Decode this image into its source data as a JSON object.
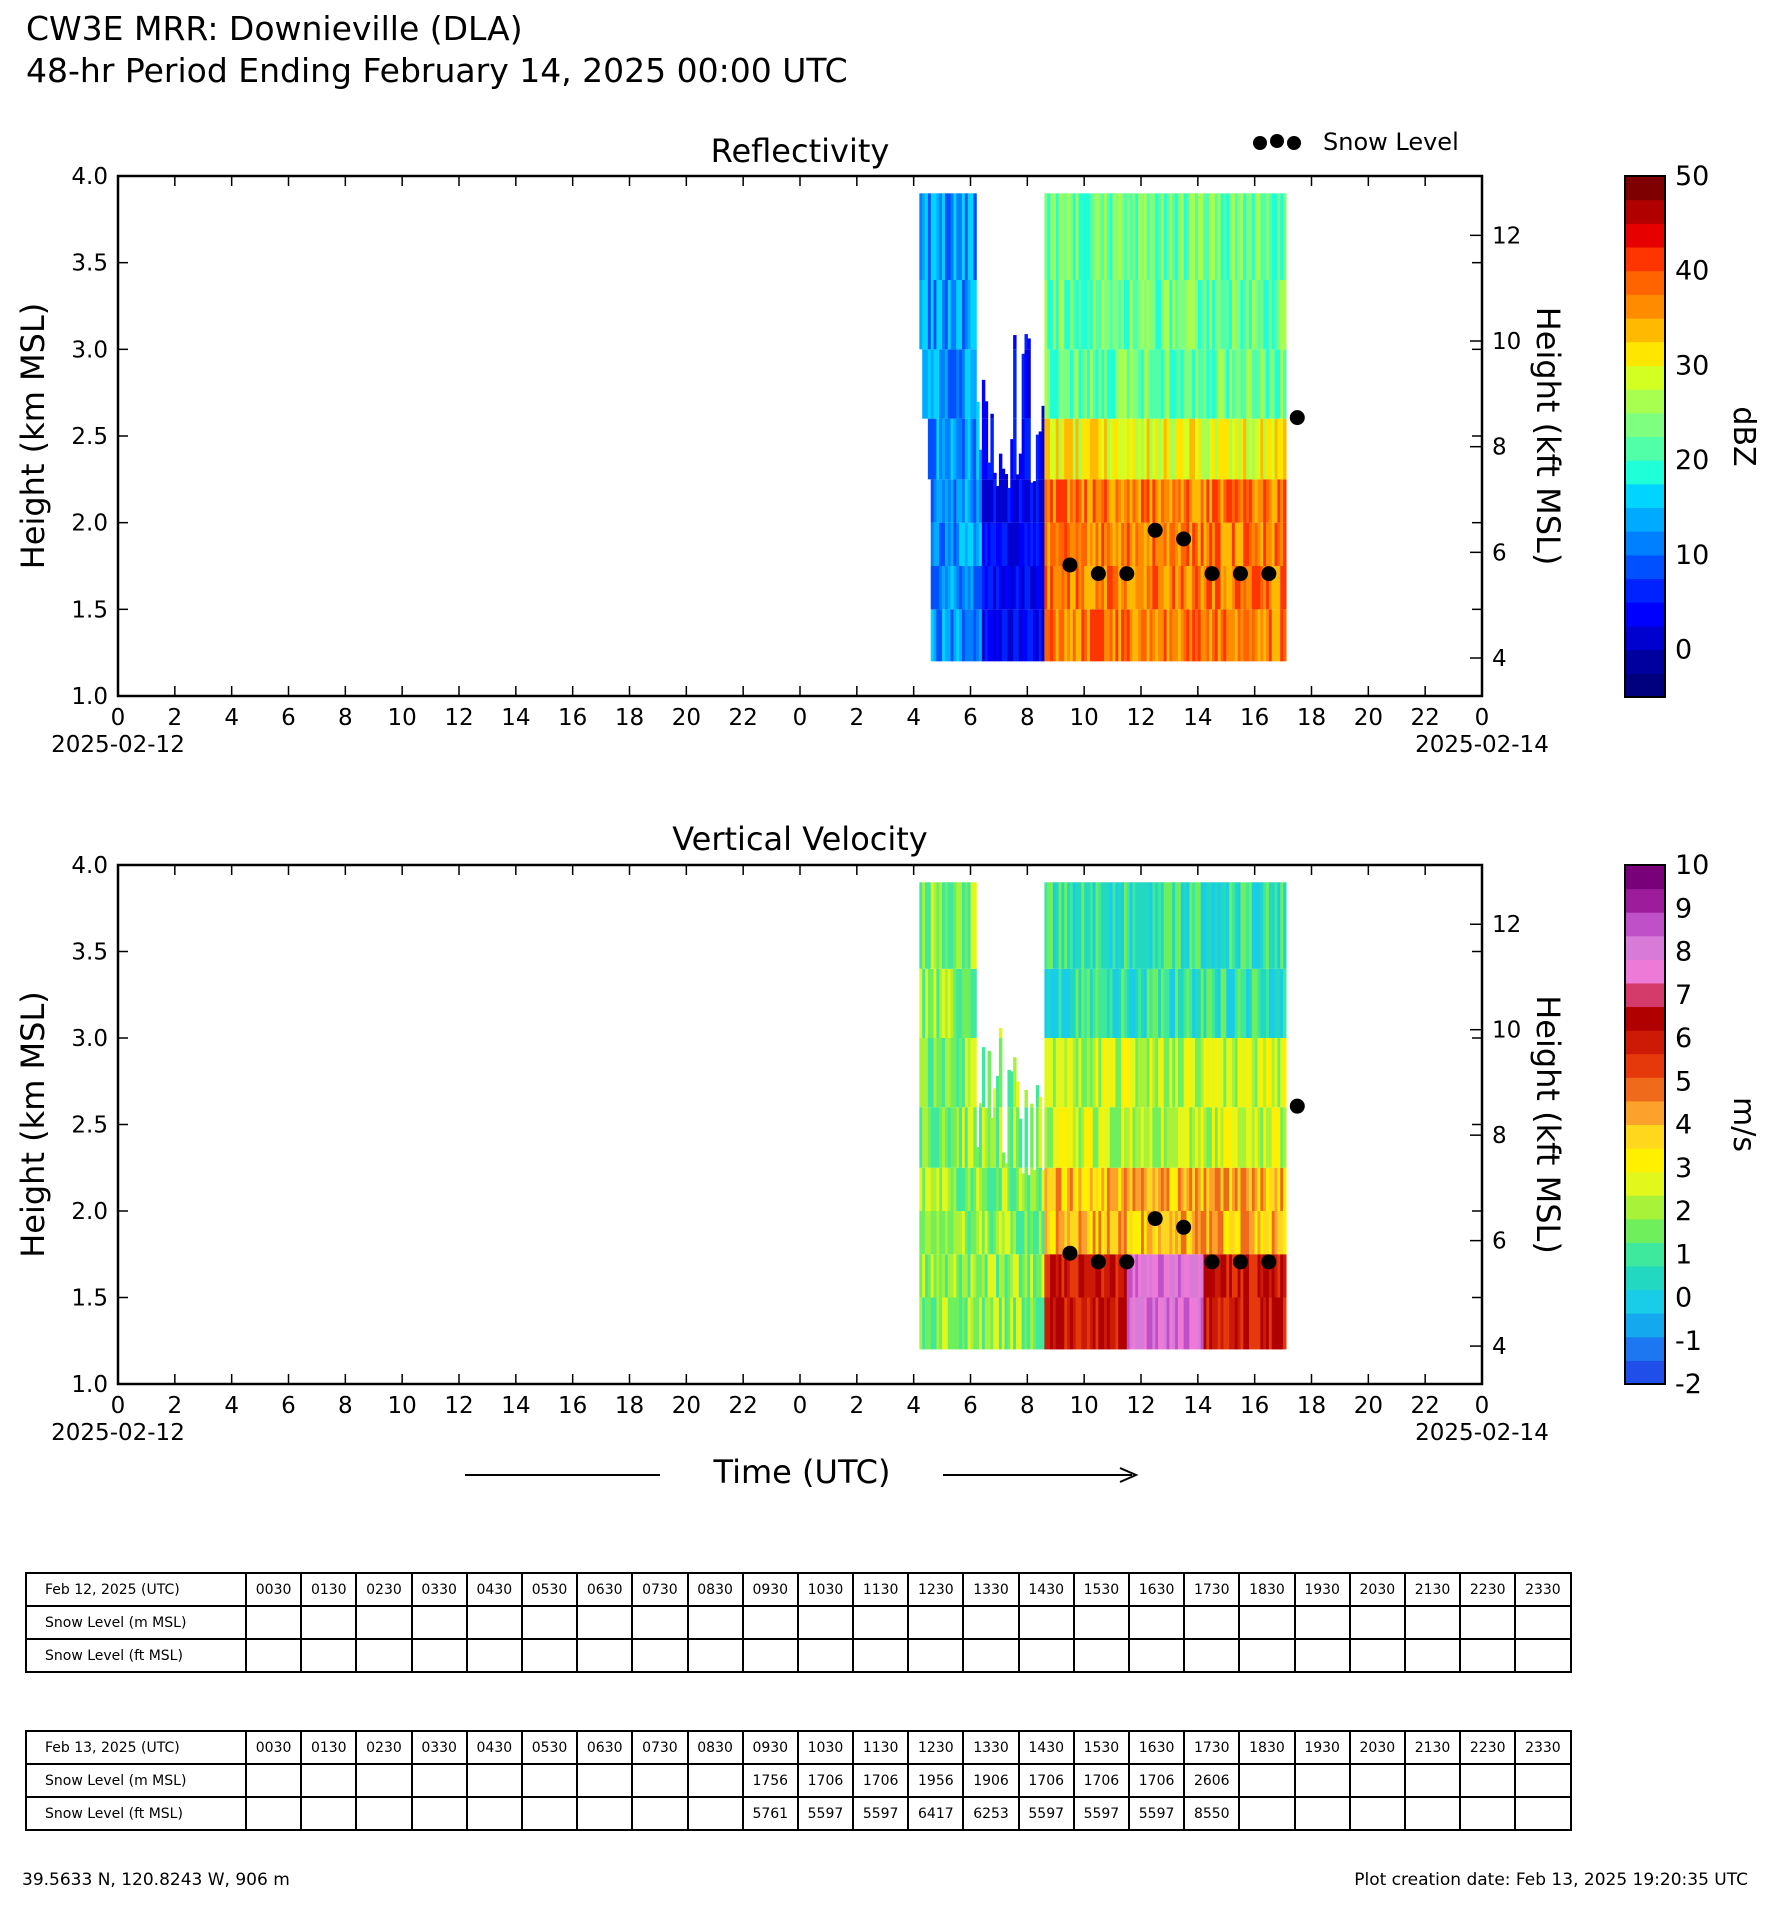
{
  "header": {
    "title_line1": "CW3E MRR: Downieville (DLA)",
    "title_line2": "48-hr Period Ending February 14, 2025 00:00 UTC"
  },
  "legend": {
    "snow_level_label": "Snow Level"
  },
  "colors": {
    "snow_marker": "#000000",
    "reflectivity_scale": [
      "#00007f",
      "#00009f",
      "#0000cf",
      "#0000ff",
      "#0022ff",
      "#0050ff",
      "#0080ff",
      "#00aaff",
      "#00d4ff",
      "#1fffd8",
      "#50ffa8",
      "#7fff7f",
      "#a8ff50",
      "#d4ff23",
      "#ffe600",
      "#ffb900",
      "#ff8c00",
      "#ff6400",
      "#ff3500",
      "#e60000",
      "#b00000",
      "#7f0000"
    ],
    "velocity_scale": [
      "#1f4fe8",
      "#1d77f0",
      "#14a8ef",
      "#19cde8",
      "#22d8c0",
      "#3ee89c",
      "#6fef5c",
      "#a8f23a",
      "#e2f81c",
      "#fff000",
      "#ffd81e",
      "#fba12c",
      "#f06a1c",
      "#e5390c",
      "#cd1a06",
      "#b00000",
      "#d43a6a",
      "#ee7ad8",
      "#d77ad8",
      "#c050c8",
      "#9c1c9c",
      "#780078"
    ]
  },
  "axis_labels": {
    "left": "Height (km MSL)",
    "right": "Height (kft MSL)",
    "x": "Time (UTC)",
    "start_date": "2025-02-12",
    "end_date": "2025-02-14"
  },
  "chart_data": [
    {
      "type": "heatmap",
      "title": "Reflectivity",
      "ylabel": "Height (km MSL)",
      "y2label": "Height (kft MSL)",
      "xlabel": "Time (UTC)",
      "x_tick_labels": [
        "0",
        "2",
        "4",
        "6",
        "8",
        "10",
        "12",
        "14",
        "16",
        "18",
        "20",
        "22",
        "0",
        "2",
        "4",
        "6",
        "8",
        "10",
        "12",
        "14",
        "16",
        "18",
        "20",
        "22",
        "0"
      ],
      "ylim": [
        1.0,
        4.0
      ],
      "y_ticks": [
        1.0,
        1.5,
        2.0,
        2.5,
        3.0,
        3.5,
        4.0
      ],
      "y2_ticks": [
        4,
        6,
        8,
        10,
        12
      ],
      "colorbar": {
        "label": "dBZ",
        "min": -5,
        "max": 50,
        "ticks": [
          0,
          10,
          20,
          30,
          40,
          50
        ]
      },
      "data_extent_hours": [
        28.2,
        41.1
      ],
      "snow_level": {
        "name": "Snow Level",
        "x_hours": [
          33.5,
          34.5,
          35.5,
          36.5,
          37.5,
          38.5,
          39.5,
          40.5,
          41.5
        ],
        "y_km": [
          1.756,
          1.706,
          1.706,
          1.956,
          1.906,
          1.706,
          1.706,
          1.706,
          2.606
        ]
      }
    },
    {
      "type": "heatmap",
      "title": "Vertical Velocity",
      "ylabel": "Height (km MSL)",
      "y2label": "Height (kft MSL)",
      "xlabel": "Time (UTC)",
      "x_tick_labels": [
        "0",
        "2",
        "4",
        "6",
        "8",
        "10",
        "12",
        "14",
        "16",
        "18",
        "20",
        "22",
        "0",
        "2",
        "4",
        "6",
        "8",
        "10",
        "12",
        "14",
        "16",
        "18",
        "20",
        "22",
        "0"
      ],
      "ylim": [
        1.0,
        4.0
      ],
      "y_ticks": [
        1.0,
        1.5,
        2.0,
        2.5,
        3.0,
        3.5,
        4.0
      ],
      "y2_ticks": [
        4,
        6,
        8,
        10,
        12
      ],
      "colorbar": {
        "label": "m/s",
        "min": -2,
        "max": 10,
        "ticks": [
          -2,
          -1,
          0,
          1,
          2,
          3,
          4,
          5,
          6,
          7,
          8,
          9,
          10
        ]
      },
      "data_extent_hours": [
        28.2,
        41.1
      ],
      "snow_level": {
        "name": "Snow Level",
        "x_hours": [
          33.5,
          34.5,
          35.5,
          36.5,
          37.5,
          38.5,
          39.5,
          40.5,
          41.5
        ],
        "y_km": [
          1.756,
          1.706,
          1.706,
          1.956,
          1.906,
          1.706,
          1.706,
          1.706,
          2.606
        ]
      }
    }
  ],
  "tables": [
    {
      "header": "Feb 12, 2025 (UTC)",
      "times": [
        "0030",
        "0130",
        "0230",
        "0330",
        "0430",
        "0530",
        "0630",
        "0730",
        "0830",
        "0930",
        "1030",
        "1130",
        "1230",
        "1330",
        "1430",
        "1530",
        "1630",
        "1730",
        "1830",
        "1930",
        "2030",
        "2130",
        "2230",
        "2330"
      ],
      "rows": [
        {
          "label": "Snow Level (m MSL)",
          "values": [
            "",
            "",
            "",
            "",
            "",
            "",
            "",
            "",
            "",
            "",
            "",
            "",
            "",
            "",
            "",
            "",
            "",
            "",
            "",
            "",
            "",
            "",
            "",
            ""
          ]
        },
        {
          "label": "Snow Level (ft MSL)",
          "values": [
            "",
            "",
            "",
            "",
            "",
            "",
            "",
            "",
            "",
            "",
            "",
            "",
            "",
            "",
            "",
            "",
            "",
            "",
            "",
            "",
            "",
            "",
            "",
            ""
          ]
        }
      ]
    },
    {
      "header": "Feb 13, 2025 (UTC)",
      "times": [
        "0030",
        "0130",
        "0230",
        "0330",
        "0430",
        "0530",
        "0630",
        "0730",
        "0830",
        "0930",
        "1030",
        "1130",
        "1230",
        "1330",
        "1430",
        "1530",
        "1630",
        "1730",
        "1830",
        "1930",
        "2030",
        "2130",
        "2230",
        "2330"
      ],
      "rows": [
        {
          "label": "Snow Level (m MSL)",
          "values": [
            "",
            "",
            "",
            "",
            "",
            "",
            "",
            "",
            "",
            "1756",
            "1706",
            "1706",
            "1956",
            "1906",
            "1706",
            "1706",
            "1706",
            "2606",
            "",
            "",
            "",
            "",
            "",
            ""
          ]
        },
        {
          "label": "Snow Level (ft MSL)",
          "values": [
            "",
            "",
            "",
            "",
            "",
            "",
            "",
            "",
            "",
            "5761",
            "5597",
            "5597",
            "6417",
            "6253",
            "5597",
            "5597",
            "5597",
            "8550",
            "",
            "",
            "",
            "",
            "",
            ""
          ]
        }
      ]
    }
  ],
  "footer": {
    "location": "39.5633 N, 120.8243 W, 906 m",
    "creation": "Plot creation date: Feb 13, 2025 19:20:35 UTC"
  }
}
